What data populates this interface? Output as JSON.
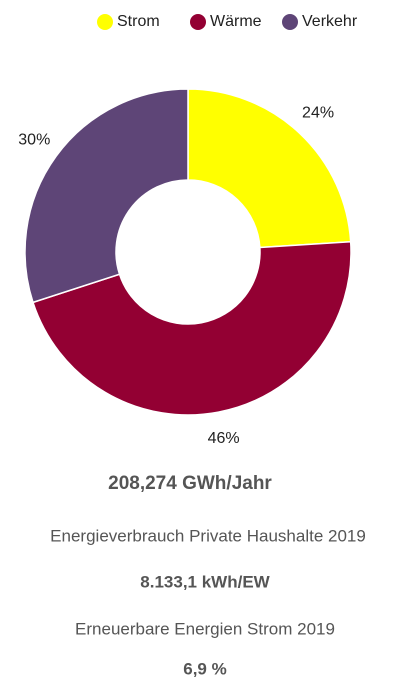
{
  "chart_data": {
    "type": "doughnut",
    "categories": [
      "Strom",
      "Wärme",
      "Verkehr"
    ],
    "values": [
      24,
      46,
      30
    ],
    "value_labels": [
      "24%",
      "46%",
      "30%"
    ],
    "colors": [
      "#ffff00",
      "#930033",
      "#5e4577"
    ],
    "legend": "top"
  },
  "stats": [
    "208,274 GWh/Jahr",
    "Energieverbrauch Private Haushalte 2019",
    "8.133,1 kWh/EW",
    "Erneuerbare Energien Strom 2019",
    "6,9 %"
  ]
}
